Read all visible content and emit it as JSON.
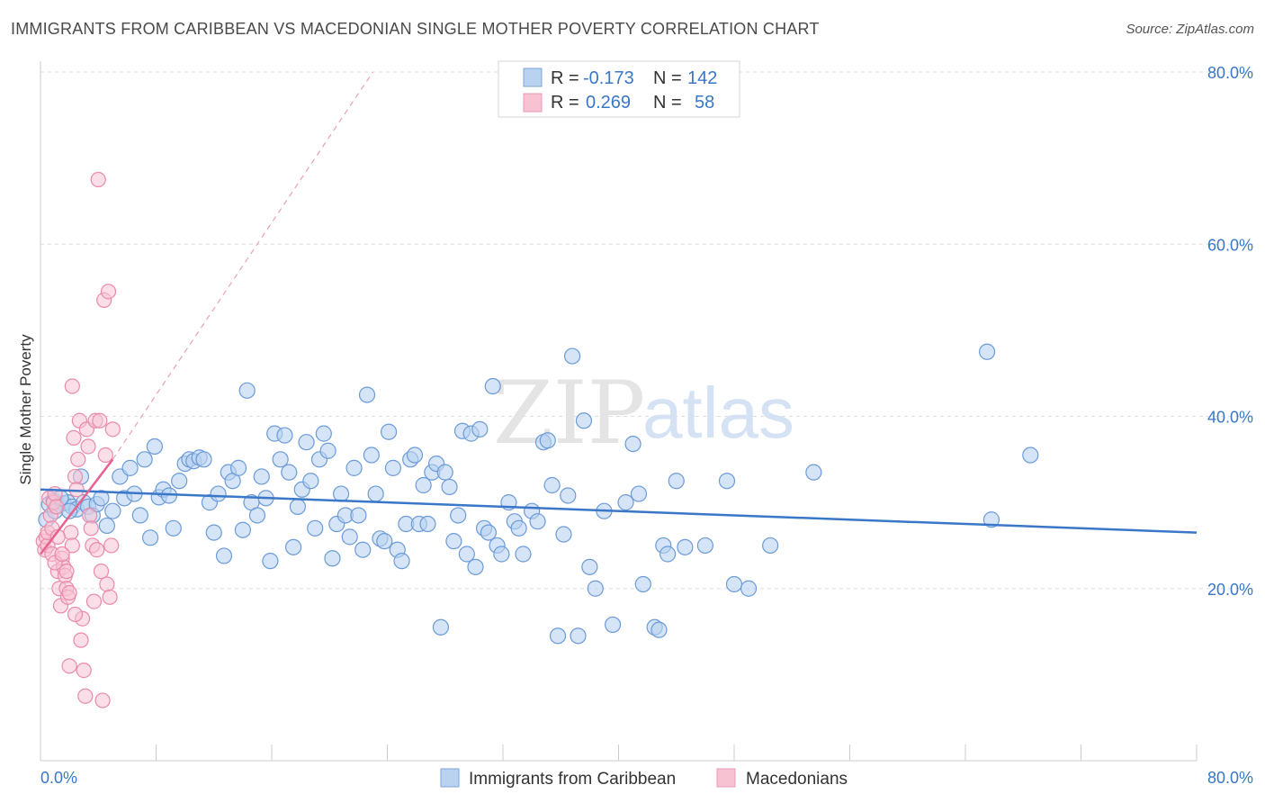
{
  "title": "IMMIGRANTS FROM CARIBBEAN VS MACEDONIAN SINGLE MOTHER POVERTY CORRELATION CHART",
  "source": "Source: ZipAtlas.com",
  "watermark": {
    "zip": "ZIP",
    "atlas": "atlas"
  },
  "colors": {
    "blue": "#3a77c8",
    "blue_fill": "#b9d2f0",
    "pink": "#e8628e",
    "pink_fill": "#f7c3d3",
    "grid": "#dddddd"
  },
  "legend": {
    "rows": [
      {
        "r_label": "R =",
        "r_value": "-0.173",
        "n_label": "N =",
        "n_value": "142"
      },
      {
        "r_label": "R =",
        "r_value": "0.269",
        "n_label": "N =",
        "n_value": "58"
      }
    ]
  },
  "chart_data": {
    "type": "scatter",
    "title": "IMMIGRANTS FROM CARIBBEAN VS MACEDONIAN SINGLE MOTHER POVERTY CORRELATION CHART",
    "xlabel": "",
    "ylabel": "Single Mother Poverty",
    "xlim": [
      0,
      80
    ],
    "ylim": [
      0,
      80
    ],
    "x_tick_labels": [
      "0.0%",
      "80.0%"
    ],
    "y_tick_labels": [
      "20.0%",
      "40.0%",
      "60.0%",
      "80.0%"
    ],
    "y_ticks": [
      20,
      40,
      60,
      80
    ],
    "series": [
      {
        "name": "Immigrants from Caribbean",
        "color": "#3a77c8",
        "r": -0.173,
        "n": 142,
        "trend": {
          "x": [
            0,
            80
          ],
          "y": [
            31.5,
            26.5
          ]
        },
        "points": [
          [
            0.6,
            29.8
          ],
          [
            0.9,
            30.2
          ],
          [
            1.2,
            29.6
          ],
          [
            1.6,
            29.9
          ],
          [
            1.9,
            30.0
          ],
          [
            2.2,
            29.5
          ],
          [
            2.5,
            29.2
          ],
          [
            2.8,
            33.0
          ],
          [
            3.0,
            30.0
          ],
          [
            3.3,
            29.5
          ],
          [
            3.6,
            28.5
          ],
          [
            3.9,
            29.8
          ],
          [
            4.2,
            30.5
          ],
          [
            4.6,
            27.3
          ],
          [
            5.0,
            29.0
          ],
          [
            5.5,
            33.0
          ],
          [
            5.8,
            30.5
          ],
          [
            6.2,
            34.0
          ],
          [
            6.5,
            31.0
          ],
          [
            6.9,
            28.5
          ],
          [
            7.2,
            35.0
          ],
          [
            7.6,
            25.9
          ],
          [
            7.9,
            36.5
          ],
          [
            8.2,
            30.6
          ],
          [
            8.5,
            31.5
          ],
          [
            8.9,
            30.8
          ],
          [
            9.2,
            27.0
          ],
          [
            9.6,
            32.5
          ],
          [
            10.0,
            34.5
          ],
          [
            10.3,
            35.0
          ],
          [
            10.6,
            34.8
          ],
          [
            11.0,
            35.2
          ],
          [
            11.3,
            35.0
          ],
          [
            11.7,
            30.0
          ],
          [
            12.0,
            26.5
          ],
          [
            12.3,
            31.0
          ],
          [
            12.7,
            23.8
          ],
          [
            13.0,
            33.5
          ],
          [
            13.3,
            32.5
          ],
          [
            13.7,
            34.0
          ],
          [
            14.0,
            26.8
          ],
          [
            14.3,
            43.0
          ],
          [
            14.6,
            30.0
          ],
          [
            15.0,
            28.5
          ],
          [
            15.3,
            33.0
          ],
          [
            15.6,
            30.5
          ],
          [
            15.9,
            23.2
          ],
          [
            16.2,
            38.0
          ],
          [
            16.6,
            35.0
          ],
          [
            16.9,
            37.8
          ],
          [
            17.2,
            33.5
          ],
          [
            17.5,
            24.8
          ],
          [
            17.8,
            29.5
          ],
          [
            18.1,
            31.5
          ],
          [
            18.4,
            37.0
          ],
          [
            18.7,
            32.5
          ],
          [
            19.0,
            27.0
          ],
          [
            19.3,
            35.0
          ],
          [
            19.6,
            38.0
          ],
          [
            19.9,
            36.0
          ],
          [
            20.2,
            23.5
          ],
          [
            20.5,
            27.5
          ],
          [
            20.8,
            31.0
          ],
          [
            21.1,
            28.5
          ],
          [
            21.4,
            26.0
          ],
          [
            21.7,
            34.0
          ],
          [
            22.0,
            28.5
          ],
          [
            22.3,
            24.5
          ],
          [
            22.6,
            42.5
          ],
          [
            22.9,
            35.5
          ],
          [
            23.2,
            31.0
          ],
          [
            23.5,
            25.8
          ],
          [
            23.8,
            25.5
          ],
          [
            24.1,
            38.2
          ],
          [
            24.4,
            34.0
          ],
          [
            24.7,
            24.5
          ],
          [
            25.0,
            23.2
          ],
          [
            25.3,
            27.5
          ],
          [
            25.6,
            35.0
          ],
          [
            25.9,
            35.5
          ],
          [
            26.2,
            27.5
          ],
          [
            26.5,
            32.0
          ],
          [
            26.8,
            27.5
          ],
          [
            27.1,
            33.5
          ],
          [
            27.4,
            34.5
          ],
          [
            27.7,
            15.5
          ],
          [
            28.0,
            33.5
          ],
          [
            28.3,
            31.8
          ],
          [
            28.6,
            25.5
          ],
          [
            28.9,
            28.5
          ],
          [
            29.2,
            38.3
          ],
          [
            29.5,
            24.0
          ],
          [
            29.8,
            38.0
          ],
          [
            30.1,
            22.5
          ],
          [
            30.4,
            38.5
          ],
          [
            30.7,
            27.0
          ],
          [
            31.0,
            26.5
          ],
          [
            31.3,
            43.5
          ],
          [
            31.6,
            25.0
          ],
          [
            31.9,
            24.0
          ],
          [
            32.4,
            30.0
          ],
          [
            32.8,
            27.8
          ],
          [
            33.1,
            27.0
          ],
          [
            33.4,
            24.0
          ],
          [
            34.0,
            29.0
          ],
          [
            34.4,
            27.8
          ],
          [
            34.8,
            37.0
          ],
          [
            35.1,
            37.2
          ],
          [
            35.4,
            32.0
          ],
          [
            35.8,
            14.5
          ],
          [
            36.2,
            26.3
          ],
          [
            36.5,
            30.8
          ],
          [
            36.8,
            47.0
          ],
          [
            37.2,
            14.5
          ],
          [
            37.6,
            39.5
          ],
          [
            38.0,
            22.5
          ],
          [
            38.4,
            20.0
          ],
          [
            39.0,
            29.0
          ],
          [
            39.6,
            15.8
          ],
          [
            40.5,
            30.0
          ],
          [
            41.0,
            36.8
          ],
          [
            41.4,
            31.0
          ],
          [
            41.7,
            20.5
          ],
          [
            42.5,
            15.5
          ],
          [
            42.8,
            15.2
          ],
          [
            43.1,
            25.0
          ],
          [
            43.4,
            24.0
          ],
          [
            44.0,
            32.5
          ],
          [
            44.6,
            24.8
          ],
          [
            46.0,
            25.0
          ],
          [
            47.5,
            32.5
          ],
          [
            48.0,
            20.5
          ],
          [
            49.0,
            20.0
          ],
          [
            50.5,
            25.0
          ],
          [
            53.5,
            33.5
          ],
          [
            65.5,
            47.5
          ],
          [
            65.8,
            28.0
          ],
          [
            68.5,
            35.5
          ],
          [
            0.4,
            28.0
          ],
          [
            1.0,
            29.0
          ],
          [
            1.4,
            30.5
          ],
          [
            2.0,
            29.0
          ]
        ]
      },
      {
        "name": "Macedonians",
        "color": "#e8628e",
        "r": 0.269,
        "n": 58,
        "trend": {
          "x": [
            0,
            5
          ],
          "y": [
            24.0,
            35.0
          ]
        },
        "trend_ext": {
          "x": [
            5,
            23
          ],
          "y": [
            35.0,
            80.0
          ]
        },
        "points": [
          [
            0.2,
            25.5
          ],
          [
            0.3,
            24.5
          ],
          [
            0.4,
            26.0
          ],
          [
            0.5,
            25.0
          ],
          [
            0.6,
            30.5
          ],
          [
            0.7,
            28.5
          ],
          [
            0.8,
            24.0
          ],
          [
            0.9,
            30.0
          ],
          [
            1.0,
            31.0
          ],
          [
            1.1,
            29.5
          ],
          [
            1.2,
            22.0
          ],
          [
            1.3,
            20.0
          ],
          [
            1.4,
            18.0
          ],
          [
            1.5,
            23.5
          ],
          [
            1.6,
            22.5
          ],
          [
            1.7,
            21.5
          ],
          [
            1.8,
            20.0
          ],
          [
            1.9,
            19.0
          ],
          [
            2.0,
            11.0
          ],
          [
            2.1,
            26.5
          ],
          [
            2.2,
            25.0
          ],
          [
            2.3,
            37.5
          ],
          [
            2.4,
            33.0
          ],
          [
            2.5,
            31.5
          ],
          [
            2.6,
            35.0
          ],
          [
            2.7,
            39.5
          ],
          [
            2.8,
            14.0
          ],
          [
            2.9,
            16.5
          ],
          [
            3.0,
            10.5
          ],
          [
            3.1,
            7.5
          ],
          [
            3.2,
            38.5
          ],
          [
            3.3,
            36.5
          ],
          [
            3.4,
            28.5
          ],
          [
            3.5,
            27.0
          ],
          [
            3.6,
            25.0
          ],
          [
            3.7,
            18.5
          ],
          [
            3.8,
            39.5
          ],
          [
            3.9,
            24.5
          ],
          [
            4.0,
            67.5
          ],
          [
            4.1,
            39.5
          ],
          [
            4.2,
            22.0
          ],
          [
            4.3,
            7.0
          ],
          [
            4.4,
            53.5
          ],
          [
            4.5,
            35.5
          ],
          [
            4.6,
            20.5
          ],
          [
            4.7,
            54.5
          ],
          [
            4.8,
            19.0
          ],
          [
            4.9,
            25.0
          ],
          [
            5.0,
            38.5
          ],
          [
            0.5,
            26.5
          ],
          [
            0.8,
            27.0
          ],
          [
            1.0,
            23.0
          ],
          [
            1.2,
            26.0
          ],
          [
            1.5,
            24.0
          ],
          [
            1.8,
            22.0
          ],
          [
            2.0,
            19.5
          ],
          [
            2.2,
            43.5
          ],
          [
            2.4,
            17.0
          ]
        ]
      }
    ]
  },
  "bottom_legend": [
    "Immigrants from Caribbean",
    "Macedonians"
  ]
}
